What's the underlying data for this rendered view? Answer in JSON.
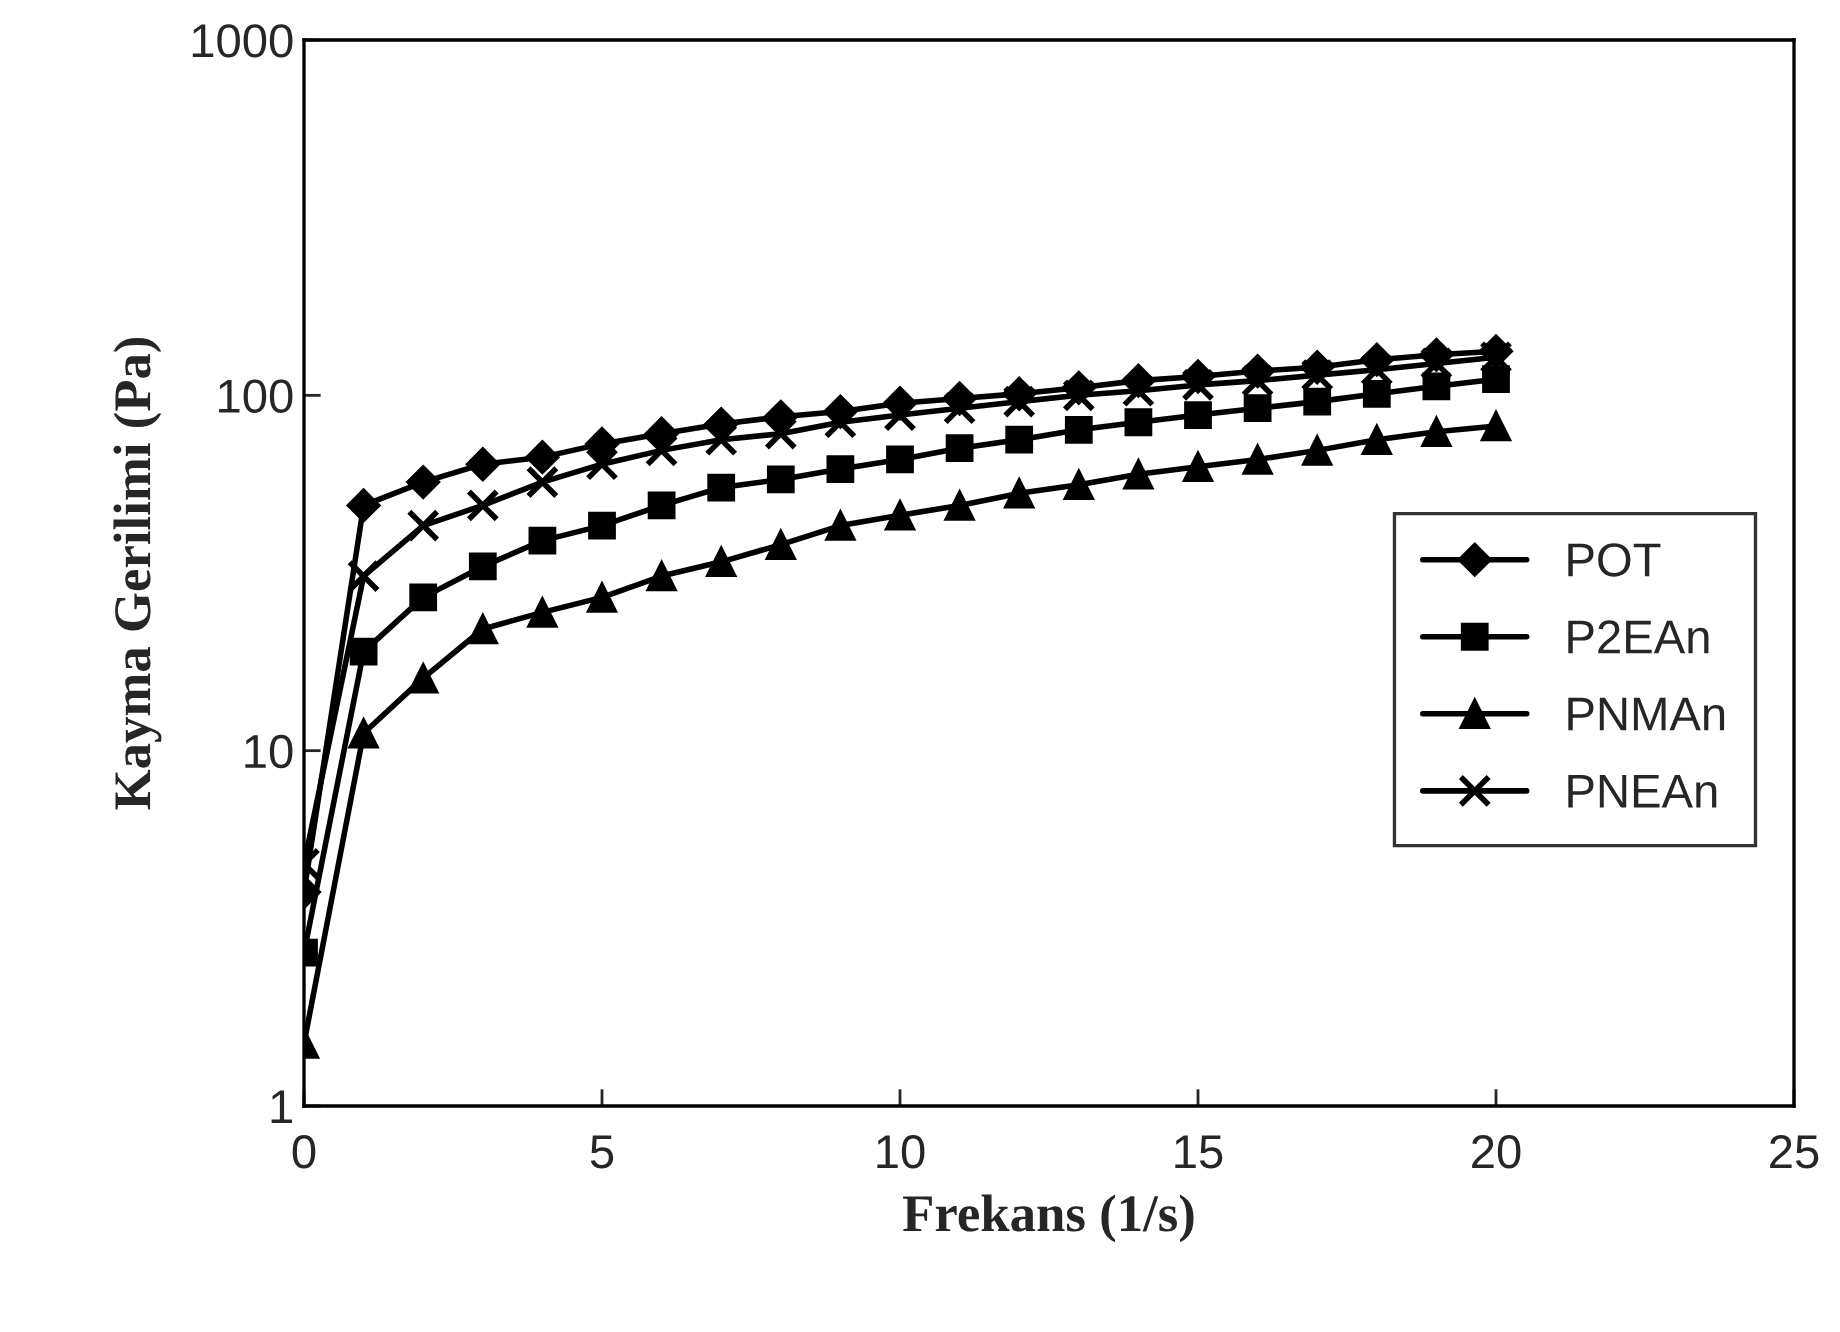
{
  "chart_data": {
    "type": "line",
    "xlabel": "Frekans (1/s)",
    "ylabel": "Kayma Gerilimi (Pa)",
    "x": [
      0,
      1,
      2,
      3,
      4,
      5,
      6,
      7,
      8,
      9,
      10,
      11,
      12,
      13,
      14,
      15,
      16,
      17,
      18,
      19,
      20
    ],
    "series": [
      {
        "name": "POT",
        "color": "#000000",
        "marker": "diamond",
        "values": [
          4,
          49,
          57,
          64,
          67,
          73,
          78,
          83,
          87,
          90,
          95,
          98,
          101,
          105,
          110,
          113,
          117,
          120,
          126,
          130,
          133
        ]
      },
      {
        "name": "P2EAn",
        "color": "#000000",
        "marker": "square",
        "values": [
          2.7,
          19,
          27,
          33,
          39,
          43,
          49,
          55,
          58,
          62,
          66,
          71,
          75,
          80,
          84,
          88,
          92,
          96,
          101,
          106,
          111
        ]
      },
      {
        "name": "PNMAn",
        "color": "#000000",
        "marker": "triangle",
        "values": [
          1.5,
          11.2,
          16,
          22,
          24.5,
          27,
          31,
          34,
          38,
          43,
          46,
          49,
          53,
          56,
          60,
          63,
          66,
          70,
          75,
          79,
          82
        ]
      },
      {
        "name": "PNEAn",
        "color": "#000000",
        "marker": "cross",
        "values": [
          4.8,
          31,
          43,
          49,
          57,
          64,
          70,
          75,
          78,
          84,
          88,
          92,
          96,
          100,
          103,
          107,
          110,
          114,
          118,
          123,
          128
        ]
      }
    ],
    "log": "y",
    "xlim": [
      0,
      25
    ],
    "xticks": [
      0,
      5,
      10,
      15,
      20,
      25
    ],
    "ylim": [
      1,
      1000
    ],
    "yticks": [
      1,
      10,
      100,
      1000
    ],
    "grid": false,
    "legend": "right",
    "line_style": "solid"
  }
}
